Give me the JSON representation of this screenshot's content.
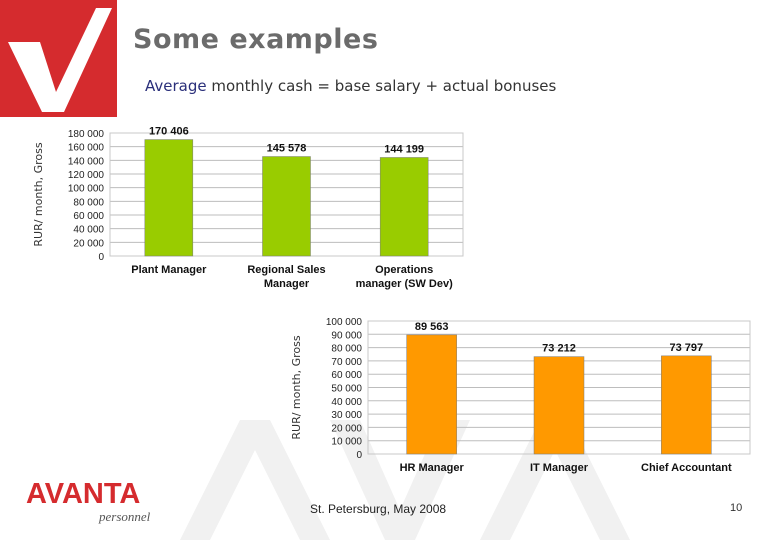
{
  "slide": {
    "title": "Some examples",
    "subtitle_accent": "Average",
    "subtitle_rest": " monthly cash = base salary + actual bonuses",
    "footer": "St. Petersburg, May 2008",
    "page_number": "10",
    "logo": {
      "word": "AVANTA",
      "sub": "personnel"
    }
  },
  "colors": {
    "brand_red": "#d52b2e",
    "green_bar": "#99cc00",
    "orange_bar": "#ff9900",
    "title_gray": "#6b6b6b"
  },
  "chart_data": [
    {
      "type": "bar",
      "ylabel": "RUR/ month, Gross",
      "ylim": [
        0,
        180000
      ],
      "yticks": [
        "0",
        "20 000",
        "40 000",
        "60 000",
        "80 000",
        "100 000",
        "120 000",
        "140 000",
        "160 000",
        "180 000"
      ],
      "categories": [
        [
          "Plant Manager"
        ],
        [
          "Regional Sales",
          "Manager"
        ],
        [
          "Operations",
          "manager (SW Dev)"
        ]
      ],
      "values": [
        170406,
        145578,
        144199
      ],
      "data_labels": [
        "170 406",
        "145 578",
        "144 199"
      ],
      "color": "#99cc00",
      "grid": true
    },
    {
      "type": "bar",
      "ylabel": "RUR/ month, Gross",
      "ylim": [
        0,
        100000
      ],
      "yticks": [
        "0",
        "10 000",
        "20 000",
        "30 000",
        "40 000",
        "50 000",
        "60 000",
        "70 000",
        "80 000",
        "90 000",
        "100 000"
      ],
      "categories": [
        [
          "HR Manager"
        ],
        [
          "IT Manager"
        ],
        [
          "Chief Accountant"
        ]
      ],
      "values": [
        89563,
        73212,
        73797
      ],
      "data_labels": [
        "89 563",
        "73 212",
        "73 797"
      ],
      "color": "#ff9900",
      "grid": true
    }
  ]
}
